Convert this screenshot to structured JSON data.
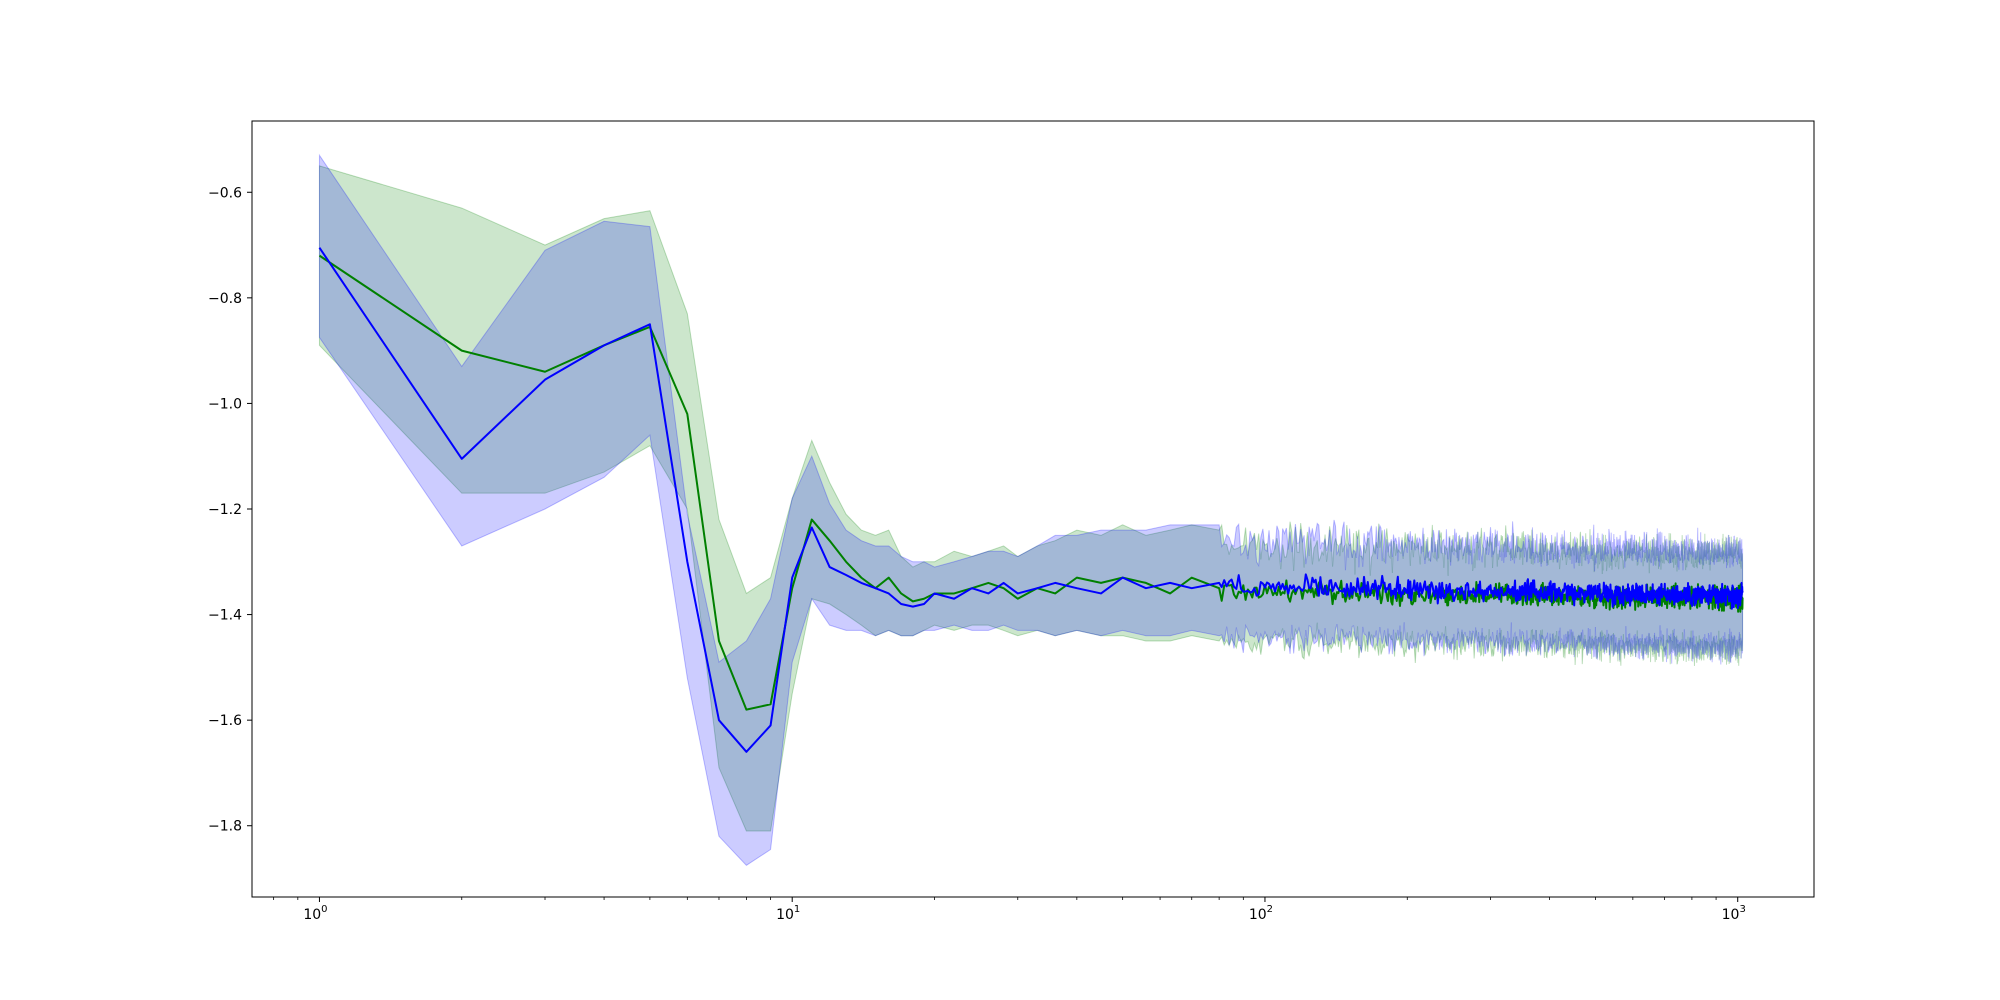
{
  "chart_data": {
    "type": "line",
    "title": "",
    "xlabel": "",
    "ylabel": "",
    "xscale": "log",
    "xlim": [
      0.72,
      1450
    ],
    "ylim": [
      -1.935,
      -0.465
    ],
    "grid": false,
    "legend": "none",
    "x_ticks": [
      {
        "value": 1,
        "base": "10",
        "exp": "0"
      },
      {
        "value": 10,
        "base": "10",
        "exp": "1"
      },
      {
        "value": 100,
        "base": "10",
        "exp": "2"
      },
      {
        "value": 1000,
        "base": "10",
        "exp": "3"
      }
    ],
    "y_ticks": [
      {
        "value": -0.6,
        "label": "−0.6"
      },
      {
        "value": -0.8,
        "label": "−0.8"
      },
      {
        "value": -1.0,
        "label": "−1.0"
      },
      {
        "value": -1.2,
        "label": "−1.2"
      },
      {
        "value": -1.4,
        "label": "−1.4"
      },
      {
        "value": -1.6,
        "label": "−1.6"
      },
      {
        "value": -1.8,
        "label": "−1.8"
      }
    ],
    "series": [
      {
        "color": "#008000",
        "band_color": "#008000",
        "band_opacity": 0.2,
        "x": [
          1,
          2,
          3,
          4,
          5,
          6,
          7,
          8,
          9,
          10,
          11,
          12,
          13,
          14,
          15,
          16,
          17,
          18,
          19,
          20,
          22,
          24,
          26,
          28,
          30,
          33,
          36,
          40,
          45,
          50,
          56,
          63,
          70,
          80
        ],
        "y": [
          -0.72,
          -0.9,
          -0.94,
          -0.89,
          -0.855,
          -1.02,
          -1.45,
          -1.58,
          -1.57,
          -1.35,
          -1.22,
          -1.26,
          -1.3,
          -1.33,
          -1.35,
          -1.33,
          -1.36,
          -1.375,
          -1.37,
          -1.36,
          -1.36,
          -1.35,
          -1.34,
          -1.35,
          -1.37,
          -1.35,
          -1.36,
          -1.33,
          -1.34,
          -1.33,
          -1.34,
          -1.36,
          -1.33,
          -1.35
        ],
        "upper": [
          -0.55,
          -0.63,
          -0.7,
          -0.65,
          -0.635,
          -0.83,
          -1.22,
          -1.36,
          -1.33,
          -1.18,
          -1.07,
          -1.15,
          -1.21,
          -1.24,
          -1.25,
          -1.24,
          -1.29,
          -1.31,
          -1.3,
          -1.3,
          -1.28,
          -1.29,
          -1.28,
          -1.27,
          -1.29,
          -1.27,
          -1.26,
          -1.24,
          -1.25,
          -1.23,
          -1.25,
          -1.24,
          -1.23,
          -1.24
        ],
        "lower": [
          -0.89,
          -1.17,
          -1.17,
          -1.13,
          -1.08,
          -1.2,
          -1.69,
          -1.81,
          -1.81,
          -1.55,
          -1.37,
          -1.38,
          -1.4,
          -1.42,
          -1.44,
          -1.43,
          -1.44,
          -1.44,
          -1.43,
          -1.42,
          -1.43,
          -1.42,
          -1.42,
          -1.43,
          -1.44,
          -1.43,
          -1.44,
          -1.43,
          -1.44,
          -1.44,
          -1.45,
          -1.45,
          -1.44,
          -1.45
        ],
        "tail": {
          "x_start": 80,
          "x_end": 1024,
          "mean": -1.355,
          "mean_end": -1.37,
          "noise": 0.015,
          "band_upper": -1.27,
          "band_lower": -1.45,
          "band_noise": 0.035
        }
      },
      {
        "color": "#0000ff",
        "band_color": "#0000ff",
        "band_opacity": 0.2,
        "x": [
          1,
          2,
          3,
          4,
          5,
          6,
          7,
          8,
          9,
          10,
          11,
          12,
          13,
          14,
          15,
          16,
          17,
          18,
          19,
          20,
          22,
          24,
          26,
          28,
          30,
          33,
          36,
          40,
          45,
          50,
          56,
          63,
          70,
          80
        ],
        "y": [
          -0.705,
          -1.105,
          -0.955,
          -0.89,
          -0.85,
          -1.3,
          -1.6,
          -1.66,
          -1.61,
          -1.33,
          -1.235,
          -1.31,
          -1.325,
          -1.34,
          -1.35,
          -1.36,
          -1.38,
          -1.385,
          -1.38,
          -1.36,
          -1.37,
          -1.35,
          -1.36,
          -1.34,
          -1.36,
          -1.35,
          -1.34,
          -1.35,
          -1.36,
          -1.33,
          -1.35,
          -1.34,
          -1.35,
          -1.34
        ],
        "upper": [
          -0.53,
          -0.93,
          -0.71,
          -0.655,
          -0.665,
          -1.21,
          -1.49,
          -1.45,
          -1.37,
          -1.18,
          -1.1,
          -1.19,
          -1.24,
          -1.26,
          -1.27,
          -1.27,
          -1.29,
          -1.3,
          -1.3,
          -1.31,
          -1.3,
          -1.29,
          -1.28,
          -1.28,
          -1.29,
          -1.27,
          -1.25,
          -1.25,
          -1.24,
          -1.24,
          -1.24,
          -1.23,
          -1.23,
          -1.23
        ],
        "lower": [
          -0.875,
          -1.27,
          -1.2,
          -1.14,
          -1.06,
          -1.52,
          -1.82,
          -1.875,
          -1.845,
          -1.49,
          -1.37,
          -1.42,
          -1.43,
          -1.43,
          -1.44,
          -1.43,
          -1.44,
          -1.44,
          -1.43,
          -1.43,
          -1.42,
          -1.43,
          -1.43,
          -1.42,
          -1.43,
          -1.43,
          -1.44,
          -1.43,
          -1.44,
          -1.43,
          -1.44,
          -1.44,
          -1.43,
          -1.44
        ],
        "tail": {
          "x_start": 80,
          "x_end": 1024,
          "mean": -1.345,
          "mean_end": -1.365,
          "noise": 0.014,
          "band_upper": -1.26,
          "band_lower": -1.44,
          "band_noise": 0.035
        }
      }
    ]
  }
}
